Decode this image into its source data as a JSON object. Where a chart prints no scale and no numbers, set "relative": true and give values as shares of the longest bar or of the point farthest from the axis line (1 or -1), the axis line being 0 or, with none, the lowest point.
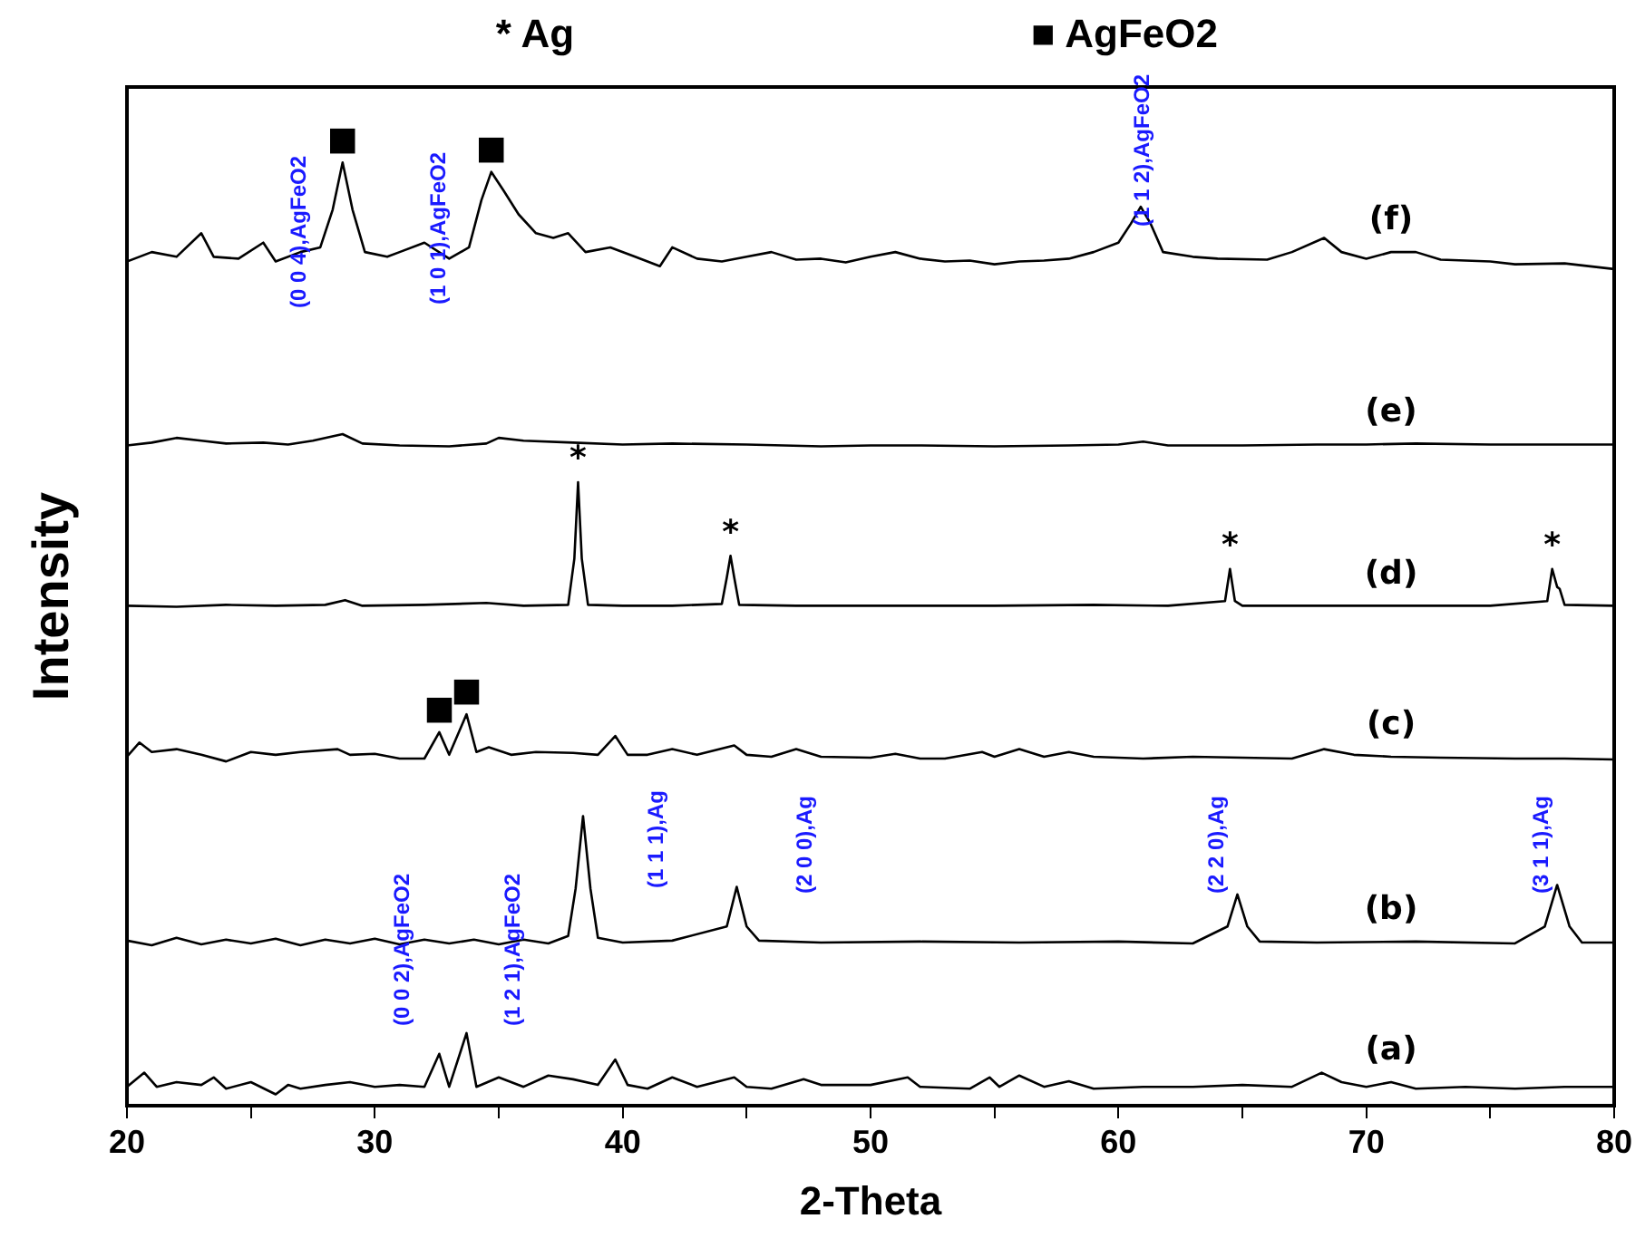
{
  "chart_data": {
    "type": "line",
    "relative": true,
    "xlabel": "2-Theta",
    "ylabel": "Intensity",
    "legend": false,
    "marker": "none",
    "line_style": "solid",
    "xlim": [
      20,
      80
    ],
    "xticks": [
      20,
      {
        "value": 25,
        "label": null
      },
      30,
      {
        "value": 35,
        "label": null
      },
      40,
      {
        "value": 45,
        "label": null
      },
      50,
      {
        "value": 55,
        "label": null
      },
      60,
      {
        "value": 65,
        "label": null
      },
      70,
      {
        "value": 75,
        "label": null
      },
      80
    ],
    "series": [
      {
        "name": "(a)",
        "color": "#000000",
        "x": [
          20,
          20.7,
          21.2,
          22,
          23,
          23.5,
          24,
          25,
          26,
          26.5,
          27,
          28,
          29,
          30,
          31,
          32,
          32.6,
          33,
          33.7,
          34.1,
          35,
          36,
          37,
          38,
          39,
          39.7,
          40.2,
          41,
          42,
          43,
          44.5,
          45,
          46,
          47.3,
          48,
          50,
          51.5,
          52,
          54,
          54.8,
          55.2,
          56,
          57,
          58,
          59,
          61,
          63,
          65,
          67,
          68.2,
          69,
          70,
          71,
          72,
          74,
          76,
          78,
          80
        ],
        "values": [
          0.02,
          0.035,
          0.02,
          0.025,
          0.022,
          0.03,
          0.018,
          0.025,
          0.012,
          0.022,
          0.018,
          0.022,
          0.025,
          0.02,
          0.022,
          0.02,
          0.055,
          0.02,
          0.077,
          0.02,
          0.03,
          0.02,
          0.032,
          0.028,
          0.022,
          0.049,
          0.022,
          0.018,
          0.03,
          0.02,
          0.03,
          0.02,
          0.018,
          0.028,
          0.022,
          0.022,
          0.03,
          0.02,
          0.018,
          0.03,
          0.02,
          0.032,
          0.02,
          0.026,
          0.018,
          0.02,
          0.02,
          0.022,
          0.02,
          0.035,
          0.025,
          0.02,
          0.025,
          0.018,
          0.02,
          0.018,
          0.02,
          0.02
        ]
      },
      {
        "name": "(b)",
        "color": "#000000",
        "x": [
          20,
          21,
          22,
          23,
          24,
          25,
          26,
          27,
          28,
          29,
          30,
          31,
          32,
          33,
          34,
          35,
          36,
          37,
          37.8,
          38.1,
          38.4,
          38.7,
          39,
          40,
          42,
          44.2,
          44.6,
          45,
          45.5,
          48,
          52,
          56,
          60,
          63,
          64.4,
          64.8,
          65.2,
          65.7,
          68,
          72,
          76,
          77.2,
          77.7,
          78.2,
          78.7,
          80
        ],
        "values": [
          0.175,
          0.17,
          0.178,
          0.171,
          0.176,
          0.172,
          0.177,
          0.17,
          0.176,
          0.172,
          0.177,
          0.171,
          0.176,
          0.172,
          0.176,
          0.171,
          0.176,
          0.172,
          0.18,
          0.23,
          0.307,
          0.23,
          0.178,
          0.173,
          0.175,
          0.19,
          0.232,
          0.19,
          0.175,
          0.173,
          0.174,
          0.173,
          0.174,
          0.172,
          0.19,
          0.224,
          0.19,
          0.174,
          0.173,
          0.174,
          0.172,
          0.19,
          0.234,
          0.19,
          0.173,
          0.173
        ]
      },
      {
        "name": "(c)",
        "color": "#000000",
        "x": [
          20,
          20.5,
          21,
          22,
          23,
          24,
          25,
          26,
          27,
          28.5,
          29,
          30,
          31,
          32,
          32.6,
          33,
          33.7,
          34.1,
          34.6,
          35.5,
          36.5,
          38,
          39,
          39.7,
          40.2,
          41,
          42,
          43,
          44.5,
          45,
          46,
          47,
          48,
          50,
          51,
          52,
          53,
          54.5,
          55,
          56,
          57,
          58,
          59,
          61,
          63,
          65,
          67,
          68.3,
          69.5,
          71,
          73,
          76,
          78,
          80
        ],
        "values": [
          0.37,
          0.385,
          0.375,
          0.378,
          0.372,
          0.365,
          0.375,
          0.372,
          0.375,
          0.378,
          0.372,
          0.373,
          0.368,
          0.368,
          0.396,
          0.372,
          0.415,
          0.375,
          0.38,
          0.372,
          0.375,
          0.374,
          0.372,
          0.392,
          0.372,
          0.372,
          0.378,
          0.372,
          0.382,
          0.372,
          0.37,
          0.378,
          0.37,
          0.369,
          0.373,
          0.368,
          0.368,
          0.375,
          0.37,
          0.378,
          0.37,
          0.375,
          0.37,
          0.368,
          0.37,
          0.369,
          0.368,
          0.378,
          0.372,
          0.37,
          0.369,
          0.368,
          0.368,
          0.367
        ]
      },
      {
        "name": "(d)",
        "color": "#000000",
        "x": [
          20,
          22,
          24,
          26,
          28,
          28.8,
          29.5,
          32,
          34.5,
          36,
          37.8,
          38.05,
          38.2,
          38.35,
          38.6,
          40,
          42,
          44,
          44.2,
          44.35,
          44.5,
          44.7,
          47,
          50,
          55,
          59,
          62,
          64.3,
          64.5,
          64.7,
          65,
          68,
          72,
          75,
          77.3,
          77.5,
          77.7,
          77.8,
          78,
          80
        ],
        "values": [
          0.53,
          0.529,
          0.531,
          0.53,
          0.531,
          0.536,
          0.53,
          0.531,
          0.533,
          0.53,
          0.531,
          0.58,
          0.661,
          0.58,
          0.531,
          0.53,
          0.53,
          0.532,
          0.56,
          0.583,
          0.56,
          0.531,
          0.53,
          0.53,
          0.53,
          0.531,
          0.53,
          0.535,
          0.569,
          0.535,
          0.53,
          0.53,
          0.53,
          0.53,
          0.535,
          0.569,
          0.55,
          0.548,
          0.531,
          0.53
        ]
      },
      {
        "name": "(e)",
        "color": "#000000",
        "x": [
          20,
          21,
          22,
          23,
          24,
          25.5,
          26.5,
          27.5,
          28.7,
          29.5,
          31,
          33,
          34.5,
          35,
          36,
          38,
          40,
          42,
          45,
          48,
          50,
          52,
          55,
          58,
          60,
          61,
          62,
          65,
          68,
          70,
          72,
          75,
          78,
          80
        ],
        "values": [
          0.7,
          0.703,
          0.708,
          0.705,
          0.702,
          0.703,
          0.701,
          0.705,
          0.712,
          0.702,
          0.7,
          0.699,
          0.702,
          0.708,
          0.705,
          0.703,
          0.701,
          0.702,
          0.701,
          0.699,
          0.7,
          0.7,
          0.699,
          0.7,
          0.701,
          0.704,
          0.7,
          0.7,
          0.701,
          0.701,
          0.702,
          0.701,
          0.701,
          0.701
        ]
      },
      {
        "name": "(f)",
        "color": "#000000",
        "x": [
          20,
          21,
          22,
          23,
          23.5,
          24.5,
          25.5,
          26,
          27,
          27.8,
          28.3,
          28.7,
          29.1,
          29.6,
          30.5,
          31,
          32,
          33,
          33.8,
          34.3,
          34.7,
          35.2,
          35.8,
          36.5,
          37.2,
          37.8,
          38.5,
          39.5,
          40.5,
          41.5,
          42,
          43,
          44,
          45,
          46,
          47,
          48,
          49,
          50,
          51,
          52,
          53,
          54,
          55,
          56,
          57,
          58,
          59,
          60,
          60.5,
          60.9,
          61.3,
          61.8,
          63,
          64,
          66,
          67,
          68.3,
          69,
          70,
          71,
          72,
          73,
          75,
          76,
          78,
          80
        ],
        "values": [
          0.895,
          0.905,
          0.9,
          0.925,
          0.9,
          0.898,
          0.915,
          0.895,
          0.905,
          0.91,
          0.95,
          1,
          0.95,
          0.905,
          0.9,
          0.905,
          0.915,
          0.898,
          0.91,
          0.96,
          0.99,
          0.97,
          0.945,
          0.925,
          0.92,
          0.925,
          0.905,
          0.91,
          0.9,
          0.89,
          0.91,
          0.898,
          0.895,
          0.9,
          0.905,
          0.897,
          0.898,
          0.894,
          0.9,
          0.905,
          0.898,
          0.895,
          0.896,
          0.892,
          0.895,
          0.896,
          0.898,
          0.905,
          0.915,
          0.935,
          0.953,
          0.935,
          0.905,
          0.9,
          0.898,
          0.897,
          0.905,
          0.92,
          0.905,
          0.898,
          0.905,
          0.905,
          0.897,
          0.895,
          0.892,
          0.893,
          0.887
        ]
      }
    ],
    "annotations": [
      "* Ag",
      "■ AgFeO2",
      "(0 0 4),AgFeO2",
      "(1 0 1),AgFeO2",
      "(1 1 2),AgFeO2",
      "(1 1 1),Ag",
      "(2 0 0),Ag",
      "(2 2 0),Ag",
      "(3 1 1),Ag",
      "(0 0 2),AgFeO2",
      "(1 2 1),AgFeO2",
      {
        "text": "*",
        "x": 38.2,
        "y": 0.661
      },
      {
        "text": "*",
        "x": 44.35,
        "y": 0.583
      },
      {
        "text": "*",
        "x": 64.5,
        "y": 0.569
      },
      {
        "text": "*",
        "x": 77.5,
        "y": 0.569
      },
      {
        "text": "■",
        "x": 28.7,
        "y": 1
      },
      {
        "text": "■",
        "x": 34.7,
        "y": 0.99
      },
      {
        "text": "■",
        "x": 32.6,
        "y": 0.396
      },
      {
        "text": "■",
        "x": 33.7,
        "y": 0.415
      }
    ]
  }
}
